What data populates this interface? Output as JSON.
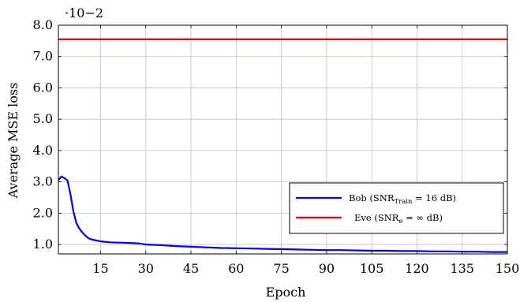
{
  "chart_data": {
    "type": "line",
    "xlabel": "Epoch",
    "ylabel": "Average MSE loss",
    "y_scale_note": "·10−2",
    "xlim": [
      1,
      150
    ],
    "ylim": [
      0.7,
      8.0
    ],
    "xticks": [
      15,
      30,
      45,
      60,
      75,
      90,
      105,
      120,
      135,
      150
    ],
    "yticks": [
      1.0,
      2.0,
      3.0,
      4.0,
      5.0,
      6.0,
      7.0,
      8.0
    ],
    "ytick_labels": [
      "1.0",
      "2.0",
      "3.0",
      "4.0",
      "5.0",
      "6.0",
      "7.0",
      "8.0"
    ],
    "grid": true,
    "legend_position": "lower-right",
    "colors": {
      "bob": "#0000ff",
      "eve": "#ff0000",
      "grid": "#c0c0c0"
    },
    "series": [
      {
        "name": "Bob (SNRTrain = 16 dB)",
        "legend_parts": {
          "pre": "Bob (SNR",
          "sub": "Train",
          "post": " = 16 dB)"
        },
        "color": "#0000ff",
        "x": [
          1,
          2,
          3,
          4,
          5,
          6,
          7,
          8,
          9,
          10,
          11,
          12,
          13,
          15,
          18,
          21,
          25,
          28,
          30,
          35,
          40,
          45,
          50,
          55,
          60,
          65,
          70,
          75,
          80,
          85,
          90,
          95,
          100,
          105,
          110,
          115,
          120,
          125,
          130,
          135,
          140,
          145,
          150
        ],
        "y": [
          3.05,
          3.17,
          3.12,
          3.05,
          2.6,
          2.05,
          1.68,
          1.5,
          1.38,
          1.28,
          1.2,
          1.16,
          1.14,
          1.1,
          1.07,
          1.06,
          1.05,
          1.03,
          1.0,
          0.98,
          0.95,
          0.93,
          0.91,
          0.89,
          0.88,
          0.87,
          0.86,
          0.85,
          0.84,
          0.83,
          0.82,
          0.82,
          0.81,
          0.8,
          0.8,
          0.79,
          0.79,
          0.78,
          0.78,
          0.77,
          0.77,
          0.76,
          0.76
        ]
      },
      {
        "name": "Eve (SNRe = ∞ dB)",
        "legend_parts": {
          "pre": "Eve (SNR",
          "sub": "e",
          "post": " = ∞ dB)"
        },
        "color": "#ff0000",
        "x": [
          1,
          150
        ],
        "y": [
          7.55,
          7.55
        ]
      }
    ]
  }
}
